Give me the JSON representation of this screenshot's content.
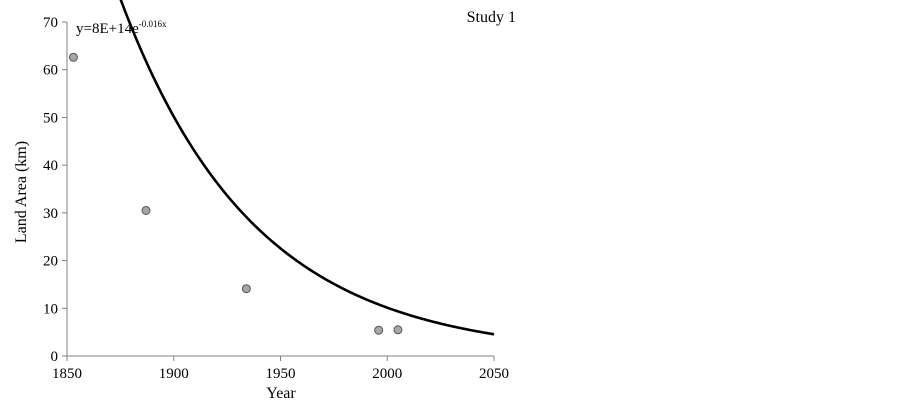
{
  "chart_data": {
    "type": "scatter",
    "title": "Study 1",
    "xlabel": "Year",
    "ylabel": "Land Area (km)",
    "xlim": [
      1850,
      2050
    ],
    "ylim": [
      0,
      70
    ],
    "x_ticks": [
      "1850",
      "1900",
      "1950",
      "2000",
      "2050"
    ],
    "y_ticks": [
      "0",
      "10",
      "20",
      "30",
      "40",
      "50",
      "60",
      "70"
    ],
    "grid": false,
    "equation": {
      "base": "y=8E+14e",
      "exponent": "-0.016x"
    },
    "series": [
      {
        "type": "scatter",
        "marker_color": "#a6a6a6",
        "x": [
          1853,
          1887,
          1934,
          1996,
          2005
        ],
        "y": [
          62.6,
          30.5,
          14.1,
          5.4,
          5.5
        ]
      },
      {
        "type": "line",
        "line_color": "#000000",
        "function": "exponential",
        "a": 800000000000000,
        "b": -0.016
      }
    ]
  }
}
